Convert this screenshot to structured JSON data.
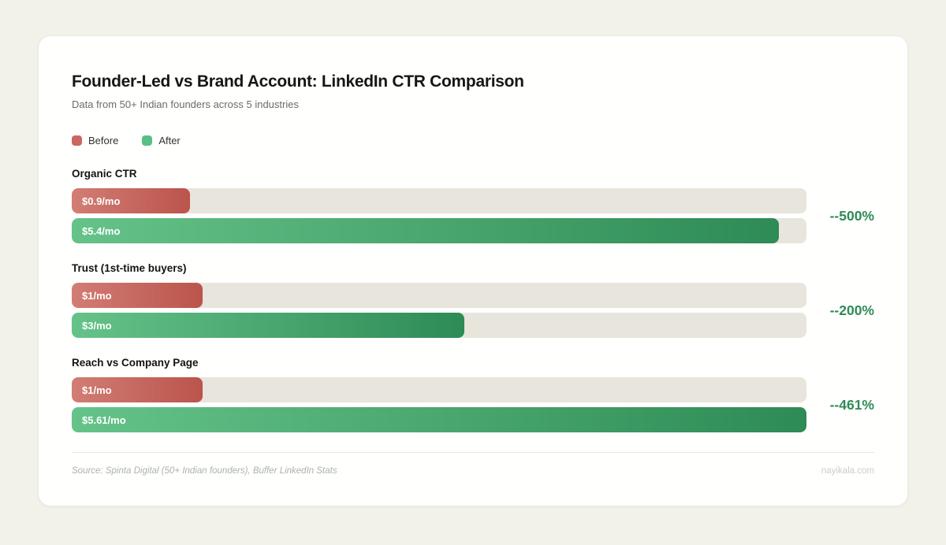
{
  "colors": {
    "page_background": "#f2f1ea",
    "card_background": "#fffffe",
    "track": "#e8e5dc",
    "before_start": "#d27d75",
    "before_end": "#bb544c",
    "after_start": "#65c389",
    "after_end": "#2e8b55",
    "legend_before": "#cc6661",
    "legend_after": "#5abf85",
    "change_text": "#2e8b57"
  },
  "chart_data": {
    "type": "bar",
    "orientation": "horizontal",
    "title": "Founder-Led vs Brand Account: LinkedIn CTR Comparison",
    "subtitle": "Data from 50+ Indian founders across 5 industries",
    "legend": [
      "Before",
      "After"
    ],
    "legend_position": "top-left",
    "grid": false,
    "value_axis_max": 5.61,
    "groups": [
      {
        "label": "Organic CTR",
        "before": {
          "value": 0.9,
          "display": "$0.9/mo"
        },
        "after": {
          "value": 5.4,
          "display": "$5.4/mo"
        },
        "change": "--500%"
      },
      {
        "label": "Trust (1st-time buyers)",
        "before": {
          "value": 1,
          "display": "$1/mo"
        },
        "after": {
          "value": 3,
          "display": "$3/mo"
        },
        "change": "--200%"
      },
      {
        "label": "Reach vs Company Page",
        "before": {
          "value": 1,
          "display": "$1/mo"
        },
        "after": {
          "value": 5.61,
          "display": "$5.61/mo"
        },
        "change": "--461%"
      }
    ]
  },
  "footer": {
    "source": "Source: Spinta Digital (50+ Indian founders), Buffer LinkedIn Stats",
    "brand": "nayikala.com"
  }
}
